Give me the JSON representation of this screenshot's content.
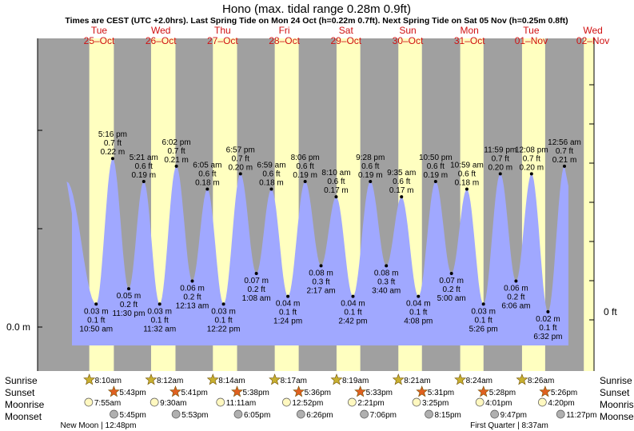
{
  "title": "Hono (max. tidal range 0.28m 0.9ft)",
  "subtitle": "Times are CEST (UTC +2.0hrs). Last Spring Tide on Mon 24 Oct (h=0.22m 0.7ft). Next Spring Tide on Sat 05 Nov (h=0.25m 0.8ft)",
  "days": [
    {
      "dow": "Tue",
      "date": "25–Oct"
    },
    {
      "dow": "Wed",
      "date": "26–Oct"
    },
    {
      "dow": "Thu",
      "date": "27–Oct"
    },
    {
      "dow": "Fri",
      "date": "28–Oct"
    },
    {
      "dow": "Sat",
      "date": "29–Oct"
    },
    {
      "dow": "Sun",
      "date": "30–Oct"
    },
    {
      "dow": "Mon",
      "date": "31–Oct"
    },
    {
      "dow": "Tue",
      "date": "01–Nov"
    },
    {
      "dow": "Wed",
      "date": "02–Nov"
    }
  ],
  "y_axis": {
    "left_label": "0.0 m",
    "right_label": "0 ft"
  },
  "row_labels": [
    "Sunrise",
    "Sunset",
    "Moonrise",
    "Moonset"
  ],
  "astro": {
    "sunrise": [
      "8:10am",
      "8:12am",
      "8:14am",
      "8:17am",
      "8:19am",
      "8:21am",
      "8:24am",
      "8:26am"
    ],
    "sunset": [
      "5:43pm",
      "5:41pm",
      "5:38pm",
      "5:36pm",
      "5:33pm",
      "5:31pm",
      "5:28pm",
      "5:26pm"
    ],
    "moonrise": [
      "7:55am",
      "9:30am",
      "11:11am",
      "12:52pm",
      "2:21pm",
      "3:25pm",
      "4:01pm",
      "4:20pm"
    ],
    "moonset": [
      "5:45pm",
      "5:53pm",
      "6:05pm",
      "6:26pm",
      "7:06pm",
      "8:15pm",
      "9:47pm",
      "11:27pm"
    ]
  },
  "moon_phases": [
    {
      "name": "New Moon",
      "time": "12:48pm"
    },
    {
      "name": "First Quarter",
      "time": "8:37am"
    }
  ],
  "colors": {
    "night": "#a0a0a0",
    "day": "#ffffc0",
    "water": "#a0a8ff",
    "day_label": "#d01010",
    "star_sunrise": "#c8b030",
    "star_sunset": "#e06020"
  },
  "chart_data": {
    "type": "area",
    "title": "Hono (max. tidal range 0.28m 0.9ft)",
    "ylabel": "0.0 m",
    "ylim": [
      0.0,
      0.28
    ],
    "x_range": [
      "2022-10-24 22:00",
      "2022-11-02 02:00"
    ],
    "points": [
      {
        "day": "2022-10-24",
        "time": "11:22pm",
        "h_m": 0.19
      },
      {
        "day": "2022-10-25",
        "time": "10:50am",
        "h_m": 0.03,
        "m": "0.03 m",
        "ft": "0.1 ft",
        "t": "10:50 am",
        "type": "low"
      },
      {
        "day": "2022-10-25",
        "time": "5:16pm",
        "h_m": 0.22,
        "m": "0.22 m",
        "ft": "0.7 ft",
        "t": "5:16 pm",
        "type": "high"
      },
      {
        "day": "2022-10-25",
        "time": "11:30pm",
        "h_m": 0.05,
        "m": "0.05 m",
        "ft": "0.2 ft",
        "t": "11:30 pm",
        "type": "low"
      },
      {
        "day": "2022-10-26",
        "time": "5:21am",
        "h_m": 0.19,
        "m": "0.19 m",
        "ft": "0.6 ft",
        "t": "5:21 am",
        "type": "high"
      },
      {
        "day": "2022-10-26",
        "time": "11:32am",
        "h_m": 0.03,
        "m": "0.03 m",
        "ft": "0.1 ft",
        "t": "11:32 am",
        "type": "low"
      },
      {
        "day": "2022-10-26",
        "time": "6:02pm",
        "h_m": 0.21,
        "m": "0.21 m",
        "ft": "0.7 ft",
        "t": "6:02 pm",
        "type": "high"
      },
      {
        "day": "2022-10-27",
        "time": "12:13am",
        "h_m": 0.06,
        "m": "0.06 m",
        "ft": "0.2 ft",
        "t": "12:13 am",
        "type": "low"
      },
      {
        "day": "2022-10-27",
        "time": "6:05am",
        "h_m": 0.18,
        "m": "0.18 m",
        "ft": "0.6 ft",
        "t": "6:05 am",
        "type": "high"
      },
      {
        "day": "2022-10-27",
        "time": "12:22pm",
        "h_m": 0.03,
        "m": "0.03 m",
        "ft": "0.1 ft",
        "t": "12:22 pm",
        "type": "low"
      },
      {
        "day": "2022-10-27",
        "time": "6:57pm",
        "h_m": 0.2,
        "m": "0.20 m",
        "ft": "0.7 ft",
        "t": "6:57 pm",
        "type": "high"
      },
      {
        "day": "2022-10-28",
        "time": "1:08am",
        "h_m": 0.07,
        "m": "0.07 m",
        "ft": "0.2 ft",
        "t": "1:08 am",
        "type": "low"
      },
      {
        "day": "2022-10-28",
        "time": "6:59am",
        "h_m": 0.18,
        "m": "0.18 m",
        "ft": "0.6 ft",
        "t": "6:59 am",
        "type": "high"
      },
      {
        "day": "2022-10-28",
        "time": "1:24pm",
        "h_m": 0.04,
        "m": "0.04 m",
        "ft": "0.1 ft",
        "t": "1:24 pm",
        "type": "low"
      },
      {
        "day": "2022-10-28",
        "time": "8:06pm",
        "h_m": 0.19,
        "m": "0.19 m",
        "ft": "0.6 ft",
        "t": "8:06 pm",
        "type": "high"
      },
      {
        "day": "2022-10-29",
        "time": "2:17am",
        "h_m": 0.08,
        "m": "0.08 m",
        "ft": "0.3 ft",
        "t": "2:17 am",
        "type": "low"
      },
      {
        "day": "2022-10-29",
        "time": "8:10am",
        "h_m": 0.17,
        "m": "0.17 m",
        "ft": "0.6 ft",
        "t": "8:10 am",
        "type": "high"
      },
      {
        "day": "2022-10-29",
        "time": "2:42pm",
        "h_m": 0.04,
        "m": "0.04 m",
        "ft": "0.1 ft",
        "t": "2:42 pm",
        "type": "low"
      },
      {
        "day": "2022-10-29",
        "time": "9:28pm",
        "h_m": 0.19,
        "m": "0.19 m",
        "ft": "0.6 ft",
        "t": "9:28 pm",
        "type": "high"
      },
      {
        "day": "2022-10-30",
        "time": "3:40am",
        "h_m": 0.08,
        "m": "0.08 m",
        "ft": "0.3 ft",
        "t": "3:40 am",
        "type": "low"
      },
      {
        "day": "2022-10-30",
        "time": "9:35am",
        "h_m": 0.17,
        "m": "0.17 m",
        "ft": "0.6 ft",
        "t": "9:35 am",
        "type": "high"
      },
      {
        "day": "2022-10-30",
        "time": "4:08pm",
        "h_m": 0.04,
        "m": "0.04 m",
        "ft": "0.1 ft",
        "t": "4:08 pm",
        "type": "low"
      },
      {
        "day": "2022-10-30",
        "time": "10:50pm",
        "h_m": 0.19,
        "m": "0.19 m",
        "ft": "0.6 ft",
        "t": "10:50 pm",
        "type": "high"
      },
      {
        "day": "2022-10-31",
        "time": "5:00am",
        "h_m": 0.07,
        "m": "0.07 m",
        "ft": "0.2 ft",
        "t": "5:00 am",
        "type": "low"
      },
      {
        "day": "2022-10-31",
        "time": "10:59am",
        "h_m": 0.18,
        "m": "0.18 m",
        "ft": "0.6 ft",
        "t": "10:59 am",
        "type": "high"
      },
      {
        "day": "2022-10-31",
        "time": "5:26pm",
        "h_m": 0.03,
        "m": "0.03 m",
        "ft": "0.1 ft",
        "t": "5:26 pm",
        "type": "low"
      },
      {
        "day": "2022-10-31",
        "time": "11:59pm",
        "h_m": 0.2,
        "m": "0.20 m",
        "ft": "0.7 ft",
        "t": "11:59 pm",
        "type": "high"
      },
      {
        "day": "2022-11-01",
        "time": "6:06am",
        "h_m": 0.06,
        "m": "0.06 m",
        "ft": "0.2 ft",
        "t": "6:06 am",
        "type": "low"
      },
      {
        "day": "2022-11-01",
        "time": "12:08pm",
        "h_m": 0.2,
        "m": "0.20 m",
        "ft": "0.7 ft",
        "t": "12:08 pm",
        "type": "high"
      },
      {
        "day": "2022-11-01",
        "time": "6:32pm",
        "h_m": 0.02,
        "m": "0.02 m",
        "ft": "0.1 ft",
        "t": "6:32 pm",
        "type": "low"
      },
      {
        "day": "2022-11-02",
        "time": "12:56am",
        "h_m": 0.21,
        "m": "0.21 m",
        "ft": "0.7 ft",
        "t": "12:56 am",
        "type": "high"
      }
    ]
  }
}
